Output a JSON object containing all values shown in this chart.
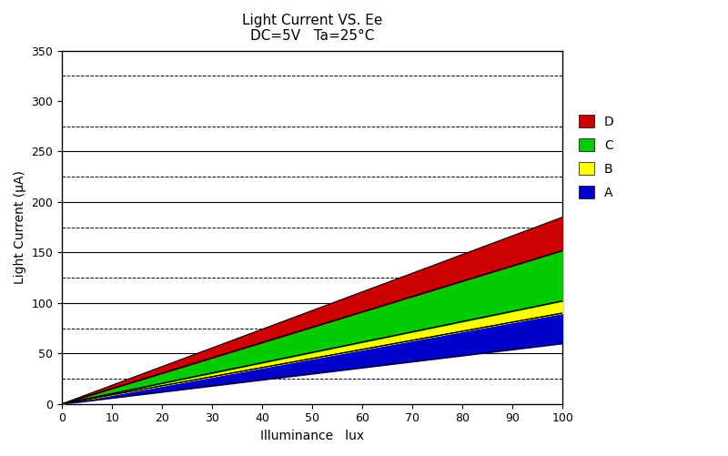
{
  "title_line1": "Light Current VS. Ee",
  "title_line2": "DC=5V   Ta=25°C",
  "xlabel": "Illuminance   lux",
  "ylabel": "Light Current (μA)",
  "xlim": [
    0,
    100
  ],
  "ylim": [
    0,
    350
  ],
  "xticks": [
    0,
    10,
    20,
    30,
    40,
    50,
    60,
    70,
    80,
    90,
    100
  ],
  "yticks": [
    0,
    50,
    100,
    150,
    200,
    250,
    300,
    350
  ],
  "dashed_hlines": [
    25,
    75,
    125,
    175,
    225,
    275,
    325
  ],
  "solid_hlines": [
    50,
    100,
    150,
    200,
    250
  ],
  "bands": {
    "A": {
      "color": "#0000cc",
      "y_lower_at_100": 60,
      "y_upper_at_100": 90
    },
    "B": {
      "color": "#ffff00",
      "y_lower_at_100": 90,
      "y_upper_at_100": 102
    },
    "C": {
      "color": "#00cc00",
      "y_lower_at_100": 102,
      "y_upper_at_100": 152
    },
    "D": {
      "color": "#cc0000",
      "y_lower_at_100": 152,
      "y_upper_at_100": 185
    }
  },
  "legend_labels": [
    "D",
    "C",
    "B",
    "A"
  ],
  "legend_colors": [
    "#cc0000",
    "#00cc00",
    "#ffff00",
    "#0000cc"
  ],
  "bg_color": "#ffffff",
  "title_fontsize": 11,
  "label_fontsize": 10,
  "tick_fontsize": 9
}
